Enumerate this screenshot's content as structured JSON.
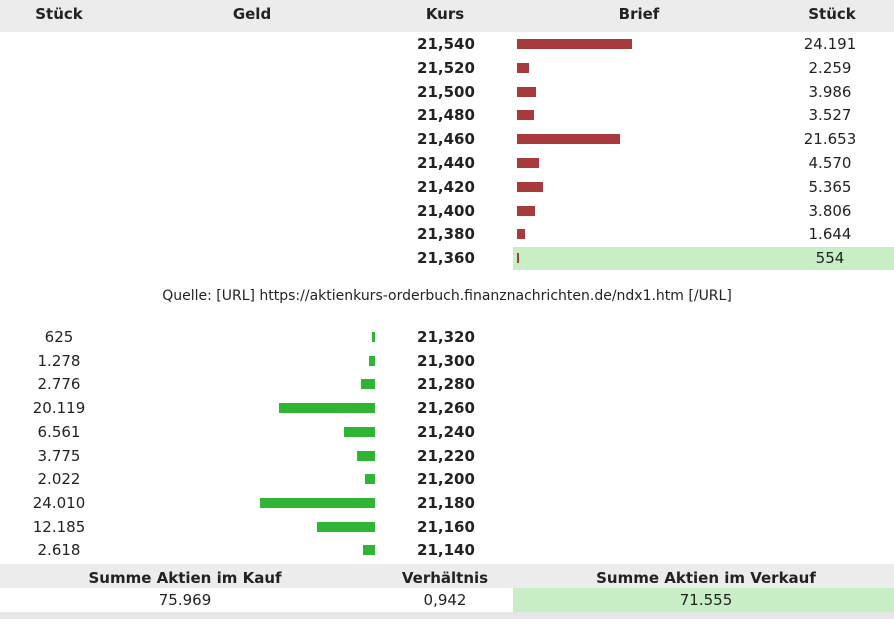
{
  "header": {
    "col_stueck_left": "Stück",
    "col_geld": "Geld",
    "col_kurs": "Kurs",
    "col_brief": "Brief",
    "col_stueck_right": "Stück"
  },
  "asks": [
    {
      "kurs": "21,540",
      "stueck": "24.191",
      "bar_fraction": 0.25
    },
    {
      "kurs": "21,520",
      "stueck": "2.259",
      "bar_fraction": 0.025
    },
    {
      "kurs": "21,500",
      "stueck": "3.986",
      "bar_fraction": 0.042
    },
    {
      "kurs": "21,480",
      "stueck": "3.527",
      "bar_fraction": 0.037
    },
    {
      "kurs": "21,460",
      "stueck": "21.653",
      "bar_fraction": 0.224
    },
    {
      "kurs": "21,440",
      "stueck": "4.570",
      "bar_fraction": 0.048
    },
    {
      "kurs": "21,420",
      "stueck": "5.365",
      "bar_fraction": 0.056
    },
    {
      "kurs": "21,400",
      "stueck": "3.806",
      "bar_fraction": 0.04
    },
    {
      "kurs": "21,380",
      "stueck": "1.644",
      "bar_fraction": 0.018
    },
    {
      "kurs": "21,360",
      "stueck": "554",
      "bar_fraction": 0.004,
      "highlight": true
    }
  ],
  "source_text": "Quelle: [URL] https://aktienkurs-orderbuch.finanznachrichten.de/ndx1.htm [/URL]",
  "bids": [
    {
      "kurs": "21,320",
      "stueck": "625",
      "bar_fraction": 0.007
    },
    {
      "kurs": "21,300",
      "stueck": "1.278",
      "bar_fraction": 0.014
    },
    {
      "kurs": "21,280",
      "stueck": "2.776",
      "bar_fraction": 0.03
    },
    {
      "kurs": "21,260",
      "stueck": "20.119",
      "bar_fraction": 0.209
    },
    {
      "kurs": "21,240",
      "stueck": "6.561",
      "bar_fraction": 0.068
    },
    {
      "kurs": "21,220",
      "stueck": "3.775",
      "bar_fraction": 0.039
    },
    {
      "kurs": "21,200",
      "stueck": "2.022",
      "bar_fraction": 0.021
    },
    {
      "kurs": "21,180",
      "stueck": "24.010",
      "bar_fraction": 0.25
    },
    {
      "kurs": "21,160",
      "stueck": "12.185",
      "bar_fraction": 0.127
    },
    {
      "kurs": "21,140",
      "stueck": "2.618",
      "bar_fraction": 0.027
    }
  ],
  "footer": {
    "buy_label": "Summe Aktien im Kauf",
    "ratio_label": "Verhältnis",
    "sell_label": "Summe Aktien im Verkauf",
    "buy_value": "75.969",
    "ratio_value": "0,942",
    "sell_value": "71.555"
  },
  "colors": {
    "ask_bar": "#a83a3d",
    "bid_bar": "#2fb533",
    "highlight": "#c7eec4",
    "header_bg": "#ececec"
  }
}
